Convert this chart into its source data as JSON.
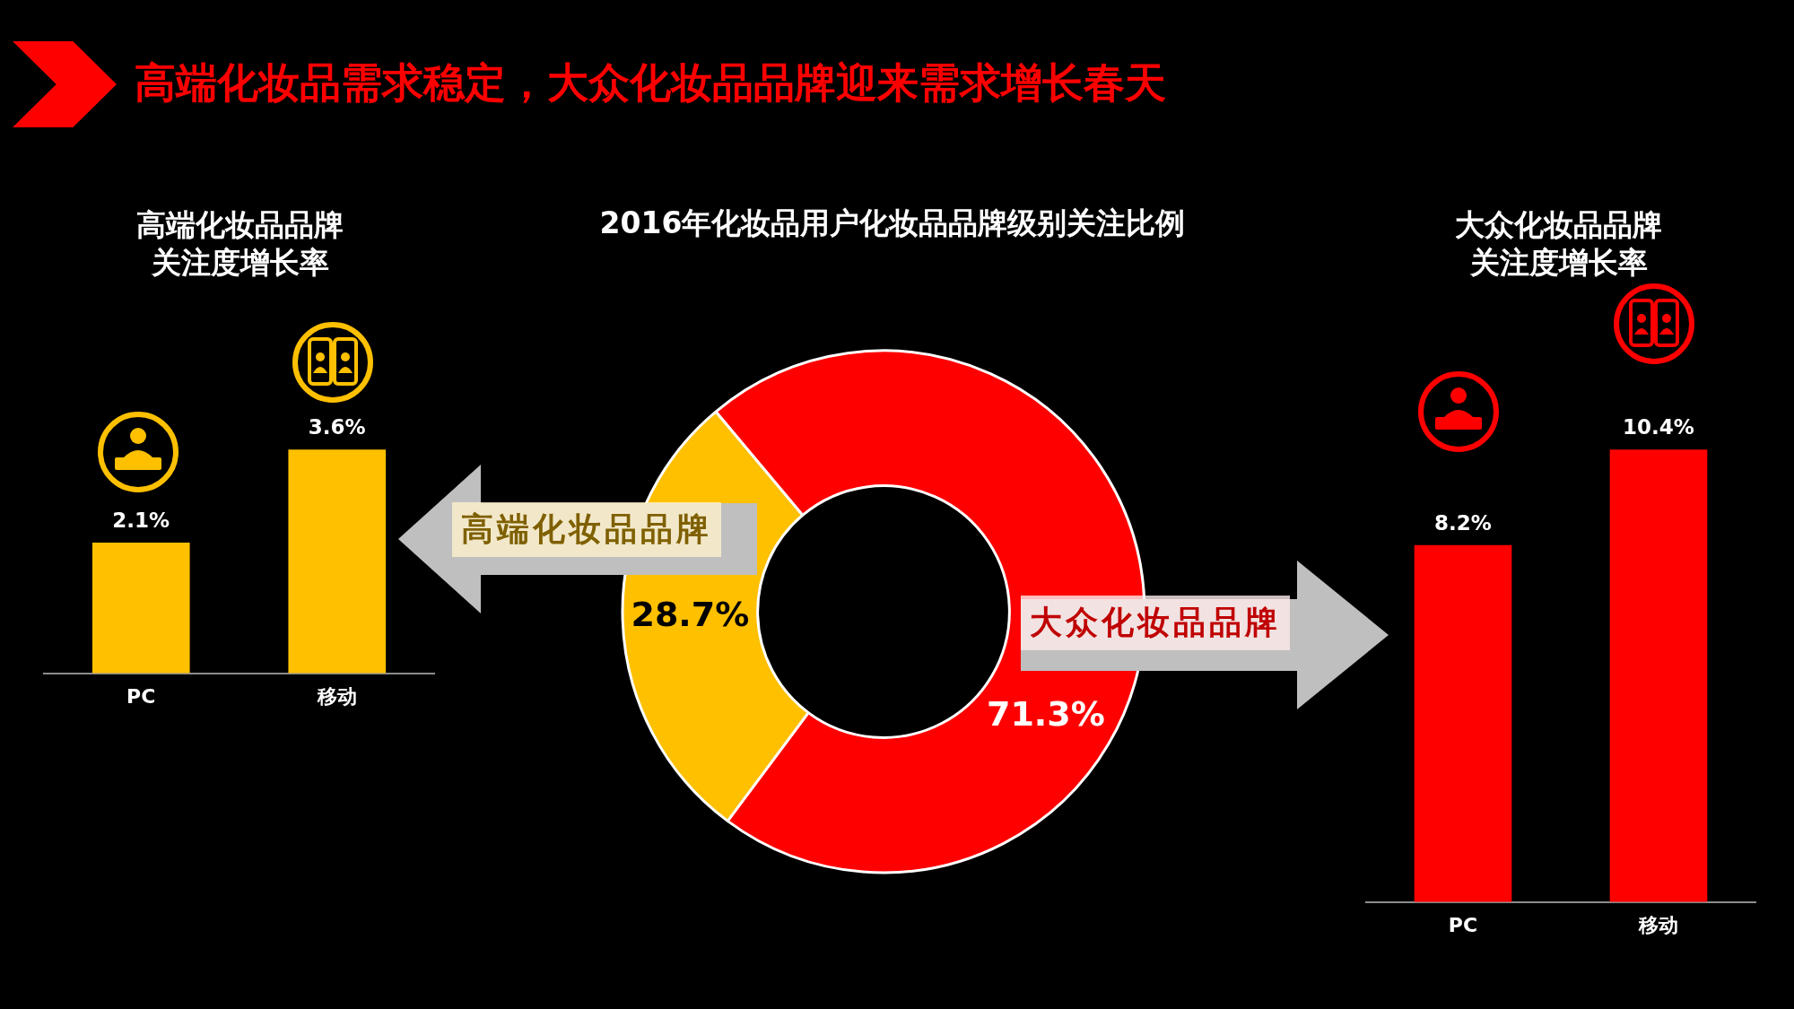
{
  "chart_data": [
    {
      "type": "other",
      "title": "高端化妆品需求稳定，大众化妆品品牌迎来需求增长春天"
    },
    {
      "type": "bar",
      "title": "高端化妆品品牌关注度增长率",
      "categories": [
        "PC",
        "移动"
      ],
      "values": [
        2.1,
        3.6
      ],
      "color": "#ffc000",
      "value_labels": [
        "2.1%",
        "3.6%"
      ]
    },
    {
      "type": "donut",
      "title": "2016年化妆品用户化妆品品牌级别关注比例",
      "categories": [
        "大众化妆品品牌",
        "高端化妆品品牌"
      ],
      "values": [
        71.3,
        28.7
      ],
      "colors": [
        "#ff0000",
        "#ffc000"
      ],
      "value_labels": [
        "71.3%",
        "28.7%"
      ]
    },
    {
      "type": "bar",
      "title": "大众化妆品品牌关注度增长率",
      "categories": [
        "PC",
        "移动"
      ],
      "values": [
        8.2,
        10.4
      ],
      "color": "#ff0000",
      "value_labels": [
        "8.2%",
        "10.4%"
      ]
    }
  ]
}
